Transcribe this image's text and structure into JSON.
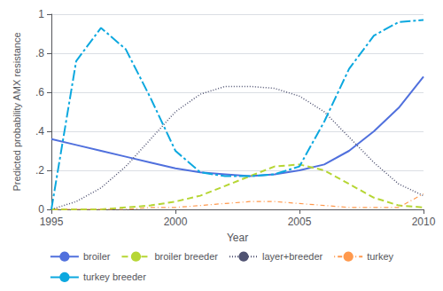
{
  "chart_data": {
    "type": "line",
    "xlabel": "Year",
    "ylabel": "Predicted probability AMX resistance",
    "x": [
      1995,
      1996,
      1997,
      1998,
      1999,
      2000,
      2001,
      2002,
      2003,
      2004,
      2005,
      2006,
      2007,
      2008,
      2009,
      2010
    ],
    "xlim": [
      1995,
      2010
    ],
    "xticks": [
      1995,
      2000,
      2005,
      2010
    ],
    "ylim": [
      0,
      1.0
    ],
    "yticks": [
      0,
      {
        "value": 0.2,
        "label": ".2"
      },
      {
        "value": 0.4,
        "label": ".4"
      },
      {
        "value": 0.6,
        "label": ".6"
      },
      {
        "value": 0.8,
        "label": ".8"
      },
      1
    ],
    "grid": true,
    "legend": "bottom",
    "series": [
      {
        "name": "broiler",
        "line_style": "solid",
        "values": [
          0.36,
          0.33,
          0.3,
          0.27,
          0.24,
          0.21,
          0.19,
          0.18,
          0.17,
          0.18,
          0.2,
          0.23,
          0.3,
          0.4,
          0.52,
          0.68
        ]
      },
      {
        "name": "broiler breeder",
        "line_style": "dashed",
        "values": [
          0.0,
          0.0,
          0.0,
          0.01,
          0.02,
          0.04,
          0.07,
          0.12,
          0.17,
          0.22,
          0.23,
          0.2,
          0.13,
          0.06,
          0.02,
          0.01
        ]
      },
      {
        "name": "layer+breeder",
        "line_style": "dotted",
        "values": [
          0.0,
          0.04,
          0.11,
          0.22,
          0.36,
          0.5,
          0.59,
          0.63,
          0.63,
          0.62,
          0.58,
          0.5,
          0.37,
          0.24,
          0.13,
          0.07
        ]
      },
      {
        "name": "turkey",
        "line_style": "dotdash",
        "values": [
          0.0,
          0.0,
          0.0,
          0.0,
          0.01,
          0.01,
          0.02,
          0.03,
          0.04,
          0.04,
          0.03,
          0.02,
          0.01,
          0.01,
          0.01,
          0.08
        ]
      },
      {
        "name": "turkey breeder",
        "line_style": "longdashdot",
        "values": [
          0.0,
          0.76,
          0.93,
          0.82,
          0.57,
          0.3,
          0.19,
          0.17,
          0.17,
          0.18,
          0.22,
          0.45,
          0.72,
          0.89,
          0.96,
          0.97
        ]
      }
    ]
  }
}
